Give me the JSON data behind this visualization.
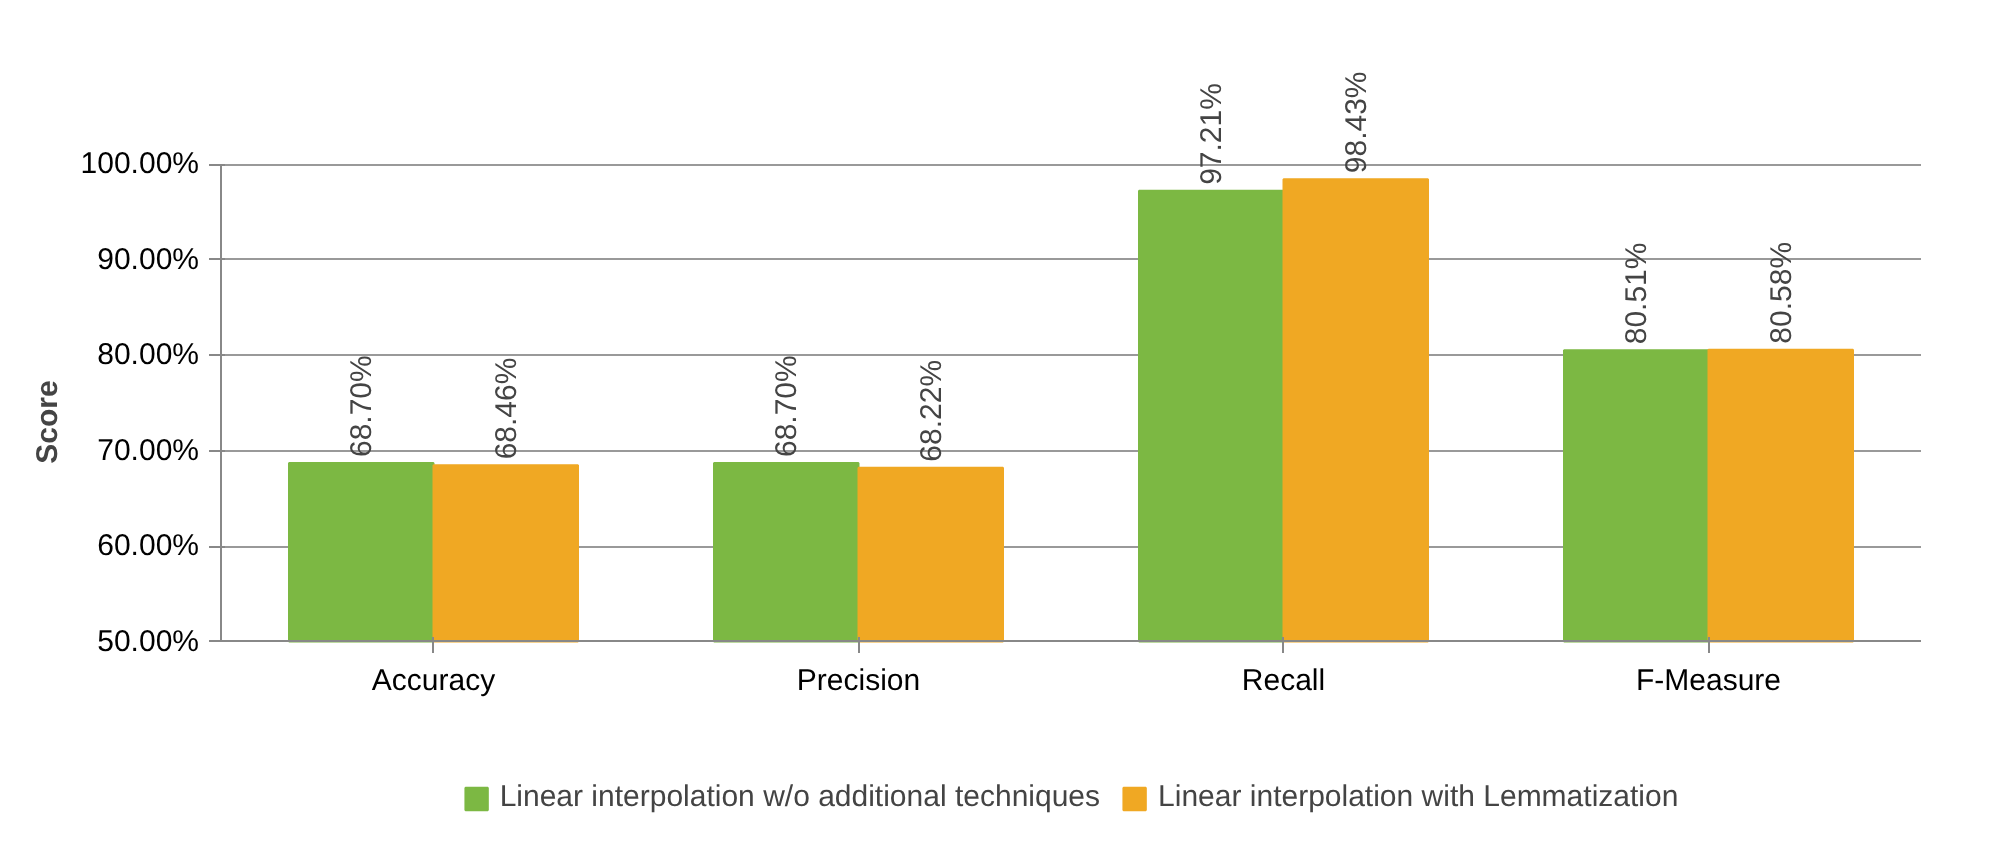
{
  "chart_data": {
    "type": "bar",
    "ylabel": "Score",
    "categories": [
      "Accuracy",
      "Precision",
      "Recall",
      "F-Measure"
    ],
    "series": [
      {
        "name": "Linear interpolation w/o additional techniques",
        "color": "#7cb843",
        "values": [
          68.7,
          68.7,
          97.21,
          80.51
        ],
        "value_labels": [
          "68.70%",
          "68.70%",
          "97.21%",
          "80.51%"
        ]
      },
      {
        "name": "Linear interpolation with Lemmatization",
        "color": "#f0a823",
        "values": [
          68.46,
          68.22,
          98.43,
          80.58
        ],
        "value_labels": [
          "68.46%",
          "68.22%",
          "98.43%",
          "80.58%"
        ]
      }
    ],
    "ylim": [
      50,
      100
    ],
    "yticks": [
      {
        "value": 50,
        "label": "50.00%"
      },
      {
        "value": 60,
        "label": "60.00%"
      },
      {
        "value": 70,
        "label": "70.00%"
      },
      {
        "value": 80,
        "label": "80.00%"
      },
      {
        "value": 90,
        "label": "90.00%"
      },
      {
        "value": 100,
        "label": "100.00%"
      }
    ],
    "grid": "y",
    "legend": "bottom"
  }
}
